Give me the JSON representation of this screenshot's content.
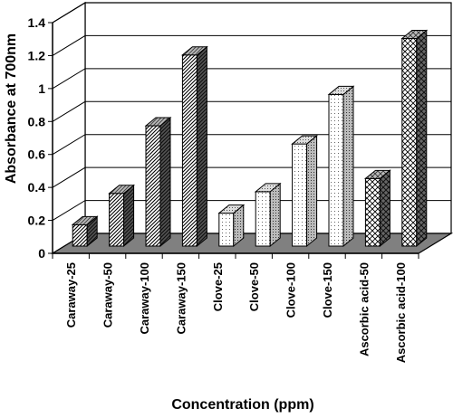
{
  "chart_data": {
    "type": "bar",
    "title": "",
    "xlabel": "Concentration (ppm)",
    "ylabel": "Absorbance at 700nm",
    "ylim": [
      0,
      1.4
    ],
    "yticks": [
      "0",
      "0.2",
      "0.4",
      "0.6",
      "0.8",
      "1",
      "1.2",
      "1.4"
    ],
    "grid": true,
    "style": "3d",
    "categories": [
      "Caraway-25",
      "Caraway-50",
      "Caraway-100",
      "Caraway-150",
      "Clove-25",
      "Clove-50",
      "Clove-100",
      "Clove-150",
      "Ascorbic acid-50",
      "Ascorbic acid-100"
    ],
    "values": [
      0.13,
      0.32,
      0.73,
      1.16,
      0.2,
      0.33,
      0.62,
      0.92,
      0.41,
      1.26
    ],
    "patterns": [
      "diagonal",
      "diagonal",
      "diagonal",
      "diagonal",
      "dotted",
      "dotted",
      "dotted",
      "dotted",
      "crosshatch",
      "crosshatch"
    ]
  }
}
